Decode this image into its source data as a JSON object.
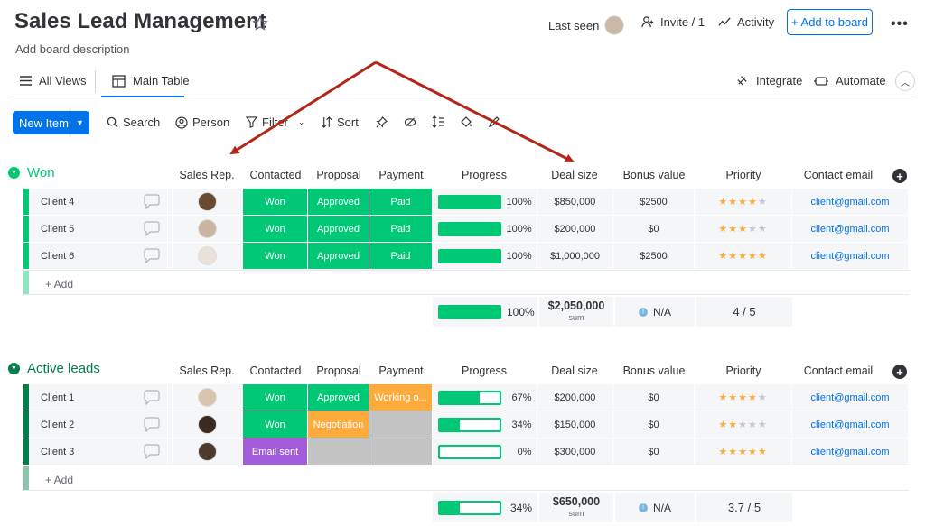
{
  "board": {
    "title": "Sales Lead Management",
    "description": "Add board description"
  },
  "topbar": {
    "last_seen": "Last seen",
    "invite": "Invite / 1",
    "activity": "Activity",
    "add_to_board": "+ Add to board"
  },
  "views": {
    "all_views": "All Views",
    "main_table": "Main Table",
    "integrate": "Integrate",
    "automate": "Automate"
  },
  "toolbar": {
    "new_item": "New Item",
    "search": "Search",
    "person": "Person",
    "filter": "Filter",
    "sort": "Sort"
  },
  "columns": {
    "sales_rep": "Sales Rep.",
    "contacted": "Contacted",
    "proposal": "Proposal",
    "payment": "Payment",
    "progress": "Progress",
    "deal_size": "Deal size",
    "bonus_value": "Bonus value",
    "priority": "Priority",
    "contact_email": "Contact email"
  },
  "add_item": "+ Add",
  "colors": {
    "primary": "#0073ea",
    "done_green": "#00c875",
    "won_group": "#00c875",
    "active_group": "#037f4c",
    "working_orange": "#fdab3d",
    "email_purple": "#a25ddc",
    "empty_grey": "#c4c4c4",
    "annotation_arrow": "#b3271a"
  },
  "groups": [
    {
      "name": "Won",
      "color": "#00c875",
      "rows": [
        {
          "item": "Client 4",
          "contacted": "Won",
          "contacted_color": "#00c875",
          "proposal": "Approved",
          "proposal_color": "#00c875",
          "payment": "Paid",
          "payment_color": "#00c875",
          "progress": 1.0,
          "progress_label": "100%",
          "deal_size": "$850,000",
          "bonus": "$2500",
          "priority": 4,
          "email": "client@gmail.com"
        },
        {
          "item": "Client 5",
          "contacted": "Won",
          "contacted_color": "#00c875",
          "proposal": "Approved",
          "proposal_color": "#00c875",
          "payment": "Paid",
          "payment_color": "#00c875",
          "progress": 1.0,
          "progress_label": "100%",
          "deal_size": "$200,000",
          "bonus": "$0",
          "priority": 3,
          "email": "client@gmail.com"
        },
        {
          "item": "Client 6",
          "contacted": "Won",
          "contacted_color": "#00c875",
          "proposal": "Approved",
          "proposal_color": "#00c875",
          "payment": "Paid",
          "payment_color": "#00c875",
          "progress": 1.0,
          "progress_label": "100%",
          "deal_size": "$1,000,000",
          "bonus": "$2500",
          "priority": 5,
          "email": "client@gmail.com"
        }
      ],
      "summary": {
        "progress": 1.0,
        "progress_label": "100%",
        "deal_total": "$2,050,000",
        "deal_sub": "sum",
        "bonus": "N/A",
        "priority": "4 / 5"
      }
    },
    {
      "name": "Active leads",
      "color": "#037f4c",
      "rows": [
        {
          "item": "Client 1",
          "contacted": "Won",
          "contacted_color": "#00c875",
          "proposal": "Approved",
          "proposal_color": "#00c875",
          "payment": "Working o...",
          "payment_color": "#fdab3d",
          "progress": 0.67,
          "progress_label": "67%",
          "deal_size": "$200,000",
          "bonus": "$0",
          "priority": 4,
          "email": "client@gmail.com"
        },
        {
          "item": "Client 2",
          "contacted": "Won",
          "contacted_color": "#00c875",
          "proposal": "Negotiation",
          "proposal_color": "#fdab3d",
          "payment": "",
          "payment_color": "#c4c4c4",
          "progress": 0.34,
          "progress_label": "34%",
          "deal_size": "$150,000",
          "bonus": "$0",
          "priority": 2,
          "email": "client@gmail.com"
        },
        {
          "item": "Client 3",
          "contacted": "Email sent",
          "contacted_color": "#a25ddc",
          "proposal": "",
          "proposal_color": "#c4c4c4",
          "payment": "",
          "payment_color": "#c4c4c4",
          "progress": 0.0,
          "progress_label": "0%",
          "deal_size": "$300,000",
          "bonus": "$0",
          "priority": 5,
          "email": "client@gmail.com"
        }
      ],
      "summary": {
        "progress": 0.34,
        "progress_label": "34%",
        "deal_total": "$650,000",
        "deal_sub": "sum",
        "bonus": "N/A",
        "priority": "3.7 / 5"
      }
    }
  ]
}
